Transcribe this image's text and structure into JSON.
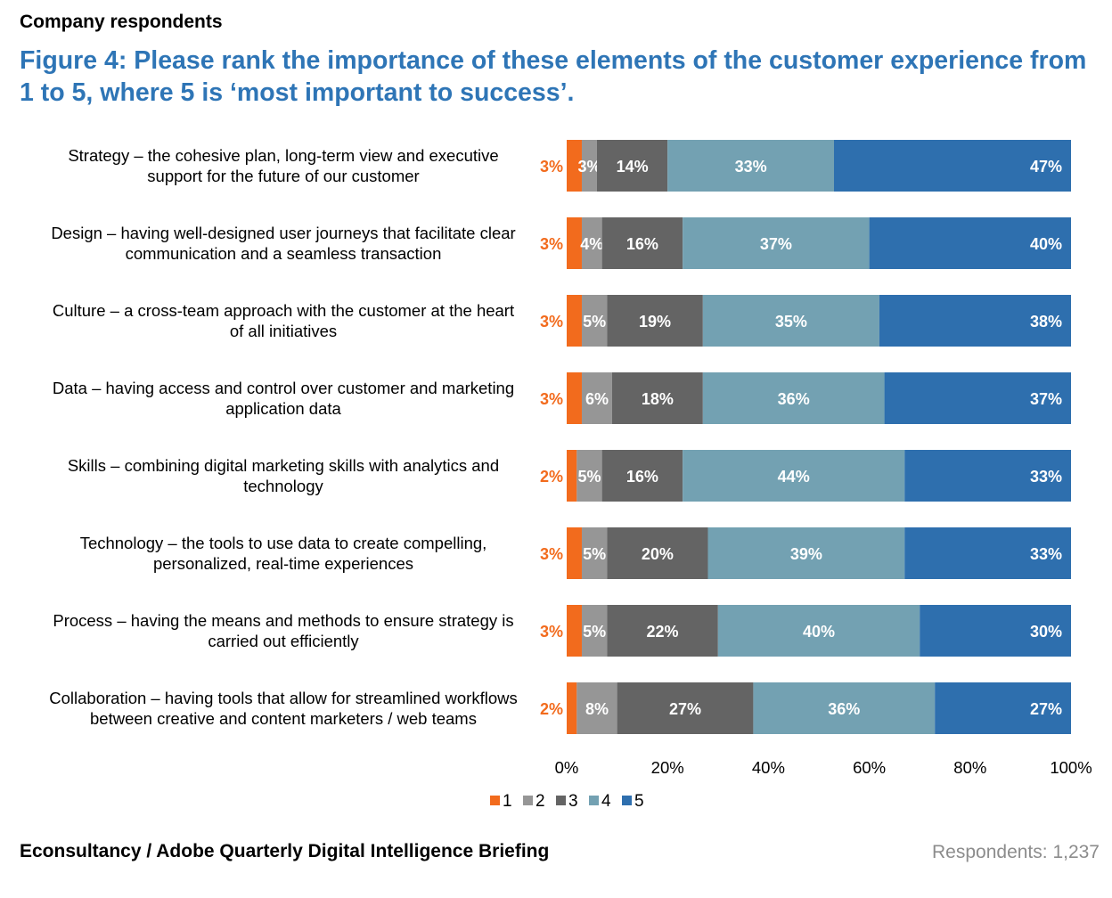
{
  "header": {
    "subtitle": "Company respondents",
    "title": "Figure 4: Please rank the importance of these elements of the customer experience from 1 to 5, where 5 is ‘most important to success’."
  },
  "footer": {
    "source": "Econsultancy / Adobe Quarterly Digital Intelligence Briefing",
    "respondents": "Respondents: 1,237"
  },
  "chart_data": {
    "type": "bar",
    "orientation": "horizontal",
    "stacked": true,
    "percent_stacked": true,
    "categories": [
      [
        "Strategy – the cohesive plan, long-term view and executive",
        "support for the future of our customer"
      ],
      [
        "Design – having well-designed user journeys that facilitate clear",
        "communication and a seamless transaction"
      ],
      [
        "Culture – a cross-team approach with the customer at the heart",
        "of all initiatives"
      ],
      [
        "Data – having access and control over customer and marketing",
        "application data"
      ],
      [
        "Skills – combining digital marketing skills with analytics and",
        "technology"
      ],
      [
        "Technology – the tools to use data to create compelling,",
        "personalized, real-time experiences"
      ],
      [
        "Process – having the means and methods to ensure strategy is",
        "carried out efficiently"
      ],
      [
        "Collaboration – having tools that allow for streamlined workflows",
        "between creative and content marketers / web teams"
      ]
    ],
    "series": [
      {
        "name": "1",
        "color": "#F26B1D",
        "values": [
          3,
          3,
          3,
          3,
          2,
          3,
          3,
          2
        ]
      },
      {
        "name": "2",
        "color": "#969696",
        "values": [
          3,
          4,
          5,
          6,
          5,
          5,
          5,
          8
        ]
      },
      {
        "name": "3",
        "color": "#646464",
        "values": [
          14,
          16,
          19,
          18,
          16,
          20,
          22,
          27
        ]
      },
      {
        "name": "4",
        "color": "#73A1B2",
        "values": [
          33,
          37,
          35,
          36,
          44,
          39,
          40,
          36
        ]
      },
      {
        "name": "5",
        "color": "#2E6FAE",
        "values": [
          47,
          40,
          38,
          37,
          33,
          33,
          30,
          27
        ]
      }
    ],
    "data_label_format": "{v}%",
    "x_ticks": [
      "0%",
      "20%",
      "40%",
      "60%",
      "80%",
      "100%"
    ],
    "xlim": [
      0,
      100
    ],
    "grid": false,
    "legend_position": "bottom"
  }
}
